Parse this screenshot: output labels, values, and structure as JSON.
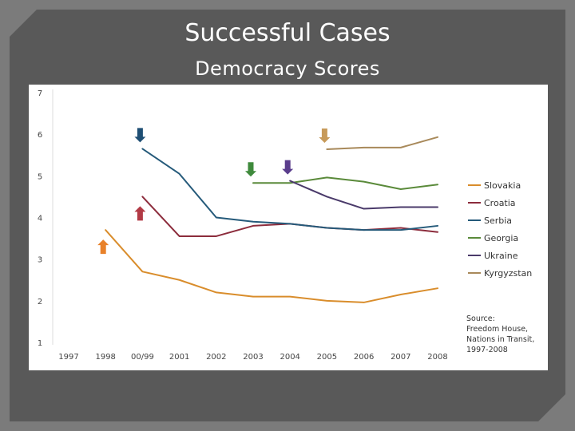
{
  "slide": {
    "title": "Successful Cases",
    "subtitle": "Democracy Scores"
  },
  "chart_data": {
    "type": "line",
    "title": "",
    "xlabel": "",
    "ylabel": "",
    "categories": [
      "1997",
      "1998",
      "00/99",
      "2001",
      "2002",
      "2003",
      "2004",
      "2005",
      "2006",
      "2007",
      "2008"
    ],
    "ylim": [
      1,
      7
    ],
    "yticks": [
      1,
      2,
      3,
      4,
      5,
      6,
      7
    ],
    "grid": false,
    "legend_position": "right",
    "series": [
      {
        "name": "Slovakia",
        "color": "#d98d2c",
        "values": [
          null,
          3.7,
          2.7,
          2.5,
          2.2,
          2.1,
          2.1,
          2.0,
          1.96,
          2.15,
          2.3
        ]
      },
      {
        "name": "Croatia",
        "color": "#8c2c3c",
        "values": [
          null,
          null,
          4.5,
          3.55,
          3.55,
          3.8,
          3.85,
          3.75,
          3.7,
          3.75,
          3.65
        ]
      },
      {
        "name": "Serbia",
        "color": "#255a7a",
        "values": [
          null,
          null,
          5.65,
          5.05,
          4.0,
          3.9,
          3.85,
          3.75,
          3.7,
          3.7,
          3.8
        ]
      },
      {
        "name": "Georgia",
        "color": "#5a8a3a",
        "values": [
          null,
          null,
          null,
          null,
          null,
          4.83,
          4.83,
          4.96,
          4.86,
          4.68,
          4.79
        ]
      },
      {
        "name": "Ukraine",
        "color": "#4a3a6a",
        "values": [
          null,
          null,
          null,
          null,
          null,
          null,
          4.88,
          4.5,
          4.21,
          4.25,
          4.25
        ]
      },
      {
        "name": "Kyrgyzstan",
        "color": "#a8895a",
        "values": [
          null,
          null,
          null,
          null,
          null,
          null,
          null,
          5.64,
          5.68,
          5.68,
          5.93
        ]
      }
    ],
    "annotations": [
      {
        "type": "arrow",
        "direction": "up",
        "series": "Slovakia",
        "category": "1998",
        "color": "#e8812a"
      },
      {
        "type": "arrow",
        "direction": "up",
        "series": "Croatia",
        "category": "00/99",
        "color": "#b23a45"
      },
      {
        "type": "arrow",
        "direction": "down",
        "series": "Serbia",
        "category": "00/99",
        "color": "#1f4f74"
      },
      {
        "type": "arrow",
        "direction": "down",
        "series": "Georgia",
        "category": "2003",
        "color": "#3f8a3c"
      },
      {
        "type": "arrow",
        "direction": "down",
        "series": "Ukraine",
        "category": "2004",
        "color": "#5a3d8c"
      },
      {
        "type": "arrow",
        "direction": "down",
        "series": "Kyrgyzstan",
        "category": "2005",
        "color": "#c79a5a"
      }
    ],
    "source": [
      "Source:",
      "Freedom House,",
      "Nations in Transit,",
      "1997-2008"
    ]
  }
}
